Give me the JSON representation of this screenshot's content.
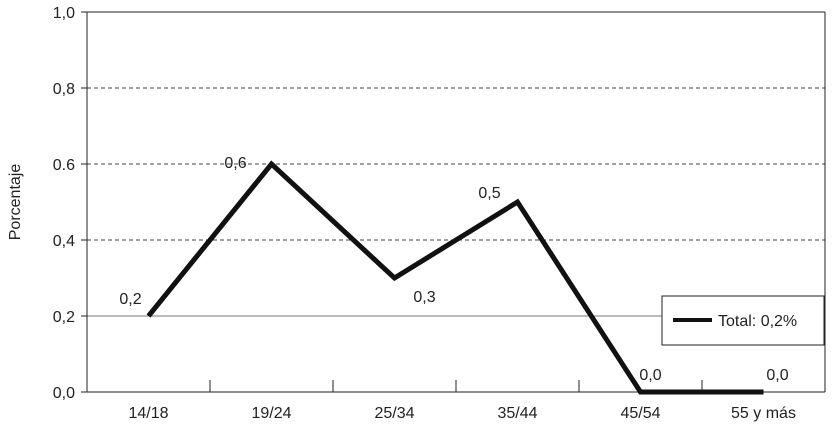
{
  "chart_data": {
    "type": "line",
    "categories": [
      "14/18",
      "19/24",
      "25/34",
      "35/44",
      "45/54",
      "55 y más"
    ],
    "series": [
      {
        "name": "Total: 0,2%",
        "values": [
          0.2,
          0.6,
          0.3,
          0.5,
          0.0,
          0.0
        ],
        "color": "#111111"
      }
    ],
    "data_labels": [
      "0,2",
      "0,6",
      "0,3",
      "0,5",
      "0,0",
      "0,0"
    ],
    "ylabel": "Porcentaje",
    "xlabel": "",
    "ylim": [
      0,
      1.0
    ],
    "yticks": [
      {
        "value": 0.0,
        "label": "0,0"
      },
      {
        "value": 0.2,
        "label": "0,2"
      },
      {
        "value": 0.4,
        "label": "0,4"
      },
      {
        "value": 0.6,
        "label": "0.6"
      },
      {
        "value": 0.8,
        "label": "0,8"
      },
      {
        "value": 1.0,
        "label": "1,0"
      }
    ],
    "gridlines": "dashed",
    "reference_line": 0.2,
    "legend": {
      "position": "right",
      "label": "Total: 0,2%"
    }
  }
}
